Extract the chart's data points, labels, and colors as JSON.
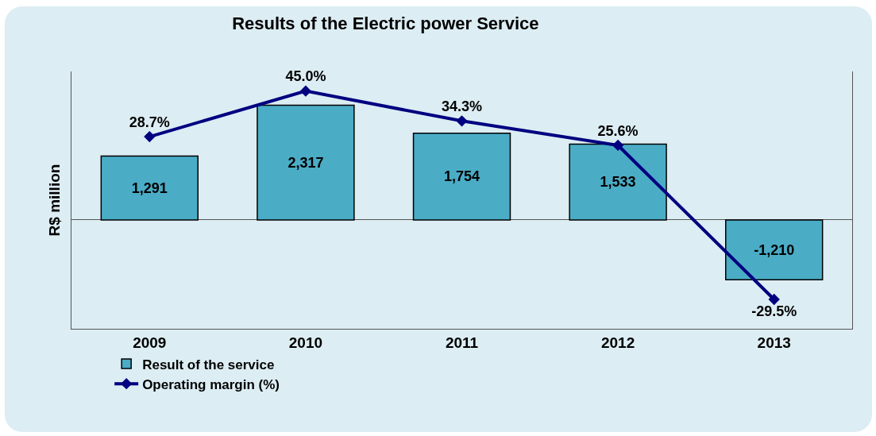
{
  "chart_data": {
    "type": "bar",
    "title": "Results of the Electric power Service",
    "ylabel": "R$ million",
    "categories": [
      "2009",
      "2010",
      "2011",
      "2012",
      "2013"
    ],
    "series": [
      {
        "name": "Result of the service",
        "color": "#4bacc6",
        "values": [
          1291,
          2317,
          1754,
          1533,
          -1210
        ],
        "value_labels": [
          "1,291",
          "2,317",
          "1,754",
          "1,533",
          "-1,210"
        ]
      },
      {
        "name": "Operating margin (%)",
        "type": "line",
        "axis": "y2",
        "color": "#000080",
        "values": [
          28.7,
          45.0,
          34.3,
          25.6,
          -29.5
        ],
        "value_labels": [
          "28.7%",
          "45.0%",
          "34.3%",
          "25.6%",
          "-29.5%"
        ],
        "marker": "diamond",
        "line_style": "solid"
      }
    ],
    "ylim": [
      -2200,
      3000
    ],
    "y2lim": [
      -40,
      52
    ],
    "tick_labels": "x",
    "grid": false,
    "legend": "bottom left"
  }
}
